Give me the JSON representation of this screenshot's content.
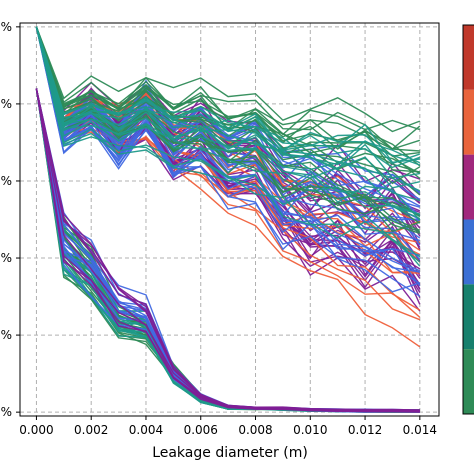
{
  "chart_data": {
    "type": "line",
    "title": "",
    "xlabel": "Leakage diameter (m)",
    "ylabel": "",
    "xlim": [
      -0.0006,
      0.0147
    ],
    "ylim": [
      -1,
      101
    ],
    "x": [
      0.0,
      0.001,
      0.002,
      0.003,
      0.004,
      0.005,
      0.006,
      0.007,
      0.008,
      0.009,
      0.01,
      0.011,
      0.012,
      0.013,
      0.014
    ],
    "xticks": [
      "0.000",
      "0.002",
      "0.004",
      "0.006",
      "0.008",
      "0.010",
      "0.012",
      "0.014"
    ],
    "yticks": [
      "%",
      "%",
      "%",
      "%",
      "%",
      "%"
    ],
    "grid": true,
    "colorbar_colors": [
      "#c0392b",
      "#e8643c",
      "#a0287c",
      "#3b6fd4",
      "#17806d",
      "#2e8b57"
    ],
    "bundles": [
      {
        "color": "#7f1f95",
        "count": 26,
        "mean": [
          100,
          74,
          80,
          72,
          78,
          69,
          74,
          65,
          66,
          57,
          50,
          54,
          47,
          53,
          44
        ]
      },
      {
        "color": "#ef5f3a",
        "count": 12,
        "mean": [
          100,
          74,
          77,
          73,
          76,
          68,
          66,
          59,
          59,
          49,
          47,
          45,
          41,
          36,
          32
        ]
      },
      {
        "color": "#4169e1",
        "count": 22,
        "mean": [
          100,
          72,
          78,
          69,
          79,
          68,
          72,
          64,
          66,
          56,
          59,
          55,
          52,
          49,
          46
        ]
      },
      {
        "color": "#2e8b57",
        "count": 20,
        "mean": [
          100,
          78,
          82,
          77,
          82,
          76,
          78,
          73,
          75,
          69,
          70,
          67,
          68,
          64,
          62
        ]
      },
      {
        "color": "#1f9a8a",
        "count": 16,
        "mean": [
          100,
          73,
          76,
          72,
          75,
          70,
          70,
          67,
          67,
          62,
          61,
          58,
          59,
          54,
          52
        ]
      },
      {
        "color": "#2e8b57",
        "count": 22,
        "mean": [
          84,
          44,
          36,
          24,
          21,
          11,
          4,
          1,
          1,
          1,
          0.5,
          0.5,
          0.3,
          0.3,
          0.3
        ]
      },
      {
        "color": "#1f9a8a",
        "count": 14,
        "mean": [
          84,
          42,
          35,
          23,
          23,
          9,
          3,
          1,
          1,
          0.8,
          0.5,
          0.4,
          0.3,
          0.3,
          0.3
        ]
      },
      {
        "color": "#4169e1",
        "count": 14,
        "mean": [
          84,
          43,
          37,
          27,
          25,
          10,
          4,
          1.5,
          1,
          1,
          0.6,
          0.5,
          0.4,
          0.4,
          0.3
        ]
      },
      {
        "color": "#7f1f95",
        "count": 8,
        "mean": [
          84,
          45,
          38,
          28,
          24,
          10,
          4,
          1.5,
          1,
          1,
          0.6,
          0.5,
          0.4,
          0.4,
          0.3
        ]
      }
    ]
  }
}
